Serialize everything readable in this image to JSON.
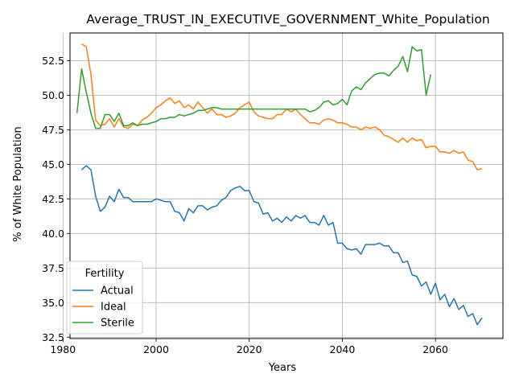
{
  "chart_data": {
    "type": "line",
    "title": "Average_TRUST_IN_EXECUTIVE_GOVERNMENT_White_Population",
    "xlabel": "Years",
    "ylabel": "% of White Population",
    "xlim": [
      1981.5,
      2074.5
    ],
    "ylim": [
      32.4,
      54.5
    ],
    "xticks": [
      1980,
      2000,
      2020,
      2040,
      2060
    ],
    "yticks": [
      32.5,
      35.0,
      37.5,
      40.0,
      42.5,
      45.0,
      47.5,
      50.0,
      52.5
    ],
    "grid": true,
    "legend": {
      "title": "Fertility",
      "placement": "bottom-left"
    },
    "series": [
      {
        "name": "Actual",
        "color": "#1f77b4",
        "x": [
          1984,
          1985,
          1986,
          1987,
          1988,
          1989,
          1990,
          1991,
          1992,
          1993,
          1994,
          1995,
          1996,
          1997,
          1998,
          1999,
          2000,
          2001,
          2002,
          2003,
          2004,
          2005,
          2006,
          2007,
          2008,
          2009,
          2010,
          2011,
          2012,
          2013,
          2014,
          2015,
          2016,
          2017,
          2018,
          2019,
          2020,
          2021,
          2022,
          2023,
          2024,
          2025,
          2026,
          2027,
          2028,
          2029,
          2030,
          2031,
          2032,
          2033,
          2034,
          2035,
          2036,
          2037,
          2038,
          2039,
          2040,
          2041,
          2042,
          2043,
          2044,
          2045,
          2046,
          2047,
          2048,
          2049,
          2050,
          2051,
          2052,
          2053,
          2054,
          2055,
          2056,
          2057,
          2058,
          2059,
          2060,
          2061,
          2062,
          2063,
          2064,
          2065,
          2066,
          2067,
          2068,
          2069,
          2070
        ],
        "y": [
          44.6,
          44.9,
          44.6,
          42.7,
          41.6,
          41.9,
          42.7,
          42.3,
          43.2,
          42.6,
          42.6,
          42.3,
          42.3,
          42.3,
          42.3,
          42.3,
          42.5,
          42.4,
          42.3,
          42.3,
          41.6,
          41.5,
          40.9,
          41.8,
          41.5,
          42.0,
          42.0,
          41.7,
          41.9,
          42.0,
          42.4,
          42.6,
          43.1,
          43.3,
          43.4,
          43.1,
          43.1,
          42.3,
          42.2,
          41.4,
          41.5,
          40.9,
          41.1,
          40.8,
          41.2,
          40.9,
          41.3,
          41.1,
          41.3,
          40.8,
          40.8,
          40.6,
          41.3,
          40.6,
          40.8,
          39.3,
          39.3,
          38.9,
          38.8,
          38.9,
          38.5,
          39.2,
          39.2,
          39.2,
          39.3,
          39.1,
          39.1,
          38.6,
          38.6,
          37.9,
          38.0,
          37.0,
          36.9,
          36.2,
          36.5,
          35.6,
          36.4,
          35.2,
          35.6,
          34.7,
          35.3,
          34.5,
          34.8,
          34.0,
          34.2,
          33.4,
          33.9
        ]
      },
      {
        "name": "Ideal",
        "color": "#ff7f0e",
        "x": [
          1984,
          1985,
          1986,
          1987,
          1988,
          1989,
          1990,
          1991,
          1992,
          1993,
          1994,
          1995,
          1996,
          1997,
          1998,
          1999,
          2000,
          2001,
          2002,
          2003,
          2004,
          2005,
          2006,
          2007,
          2008,
          2009,
          2010,
          2011,
          2012,
          2013,
          2014,
          2015,
          2016,
          2017,
          2018,
          2019,
          2020,
          2021,
          2022,
          2023,
          2024,
          2025,
          2026,
          2027,
          2028,
          2029,
          2030,
          2031,
          2032,
          2033,
          2034,
          2035,
          2036,
          2037,
          2038,
          2039,
          2040,
          2041,
          2042,
          2043,
          2044,
          2045,
          2046,
          2047,
          2048,
          2049,
          2050,
          2051,
          2052,
          2053,
          2054,
          2055,
          2056,
          2057,
          2058,
          2059,
          2060,
          2061,
          2062,
          2063,
          2064,
          2065,
          2066,
          2067,
          2068,
          2069,
          2070
        ],
        "y": [
          53.7,
          53.5,
          51.5,
          48.2,
          47.8,
          47.9,
          48.3,
          47.7,
          48.3,
          47.7,
          47.6,
          47.9,
          47.8,
          48.2,
          48.4,
          48.7,
          49.1,
          49.3,
          49.6,
          49.8,
          49.4,
          49.6,
          49.1,
          49.3,
          49.0,
          49.5,
          49.1,
          48.7,
          49.0,
          48.6,
          48.6,
          48.4,
          48.5,
          48.7,
          49.1,
          49.3,
          49.5,
          48.8,
          48.5,
          48.4,
          48.3,
          48.3,
          48.6,
          48.6,
          49.0,
          48.8,
          49.0,
          48.6,
          48.3,
          48.0,
          48.0,
          47.9,
          48.2,
          48.3,
          48.2,
          48.0,
          48.0,
          47.9,
          47.7,
          47.7,
          47.5,
          47.7,
          47.6,
          47.7,
          47.5,
          47.1,
          47.0,
          46.8,
          46.6,
          46.9,
          46.6,
          46.9,
          46.7,
          46.8,
          46.2,
          46.3,
          46.3,
          45.9,
          45.9,
          45.8,
          46.0,
          45.8,
          45.9,
          45.3,
          45.2,
          44.6,
          44.7
        ]
      },
      {
        "name": "Sterile",
        "color": "#2ca02c",
        "x": [
          1983,
          1984,
          1985,
          1986,
          1987,
          1988,
          1989,
          1990,
          1991,
          1992,
          1993,
          1994,
          1995,
          1996,
          1997,
          1998,
          1999,
          2000,
          2001,
          2002,
          2003,
          2004,
          2005,
          2006,
          2007,
          2008,
          2009,
          2010,
          2011,
          2012,
          2013,
          2014,
          2015,
          2016,
          2017,
          2018,
          2019,
          2020,
          2021,
          2022,
          2023,
          2024,
          2025,
          2026,
          2027,
          2028,
          2029,
          2030,
          2031,
          2032,
          2033,
          2034,
          2035,
          2036,
          2037,
          2038,
          2039,
          2040,
          2041,
          2042,
          2043,
          2044,
          2045,
          2046,
          2047,
          2048,
          2049,
          2050,
          2051,
          2052,
          2053,
          2054,
          2055,
          2056,
          2057,
          2058,
          2059
        ],
        "y": [
          48.7,
          51.9,
          50.2,
          48.7,
          47.6,
          47.6,
          48.6,
          48.6,
          48.1,
          48.7,
          47.8,
          47.8,
          48.0,
          47.8,
          47.9,
          47.9,
          48.0,
          48.1,
          48.3,
          48.3,
          48.4,
          48.4,
          48.6,
          48.5,
          48.6,
          48.7,
          48.9,
          48.9,
          49.0,
          49.1,
          49.1,
          49.0,
          49.0,
          49.0,
          49.0,
          49.0,
          49.0,
          49.0,
          49.0,
          49.0,
          49.0,
          49.0,
          49.0,
          49.0,
          49.0,
          49.0,
          49.0,
          49.0,
          49.0,
          49.0,
          48.8,
          48.9,
          49.1,
          49.5,
          49.6,
          49.3,
          49.4,
          49.7,
          49.3,
          50.3,
          50.6,
          50.4,
          50.9,
          51.2,
          51.5,
          51.6,
          51.6,
          51.4,
          51.8,
          52.1,
          52.8,
          51.7,
          53.5,
          53.2,
          53.3,
          50.0,
          51.5
        ]
      }
    ]
  }
}
